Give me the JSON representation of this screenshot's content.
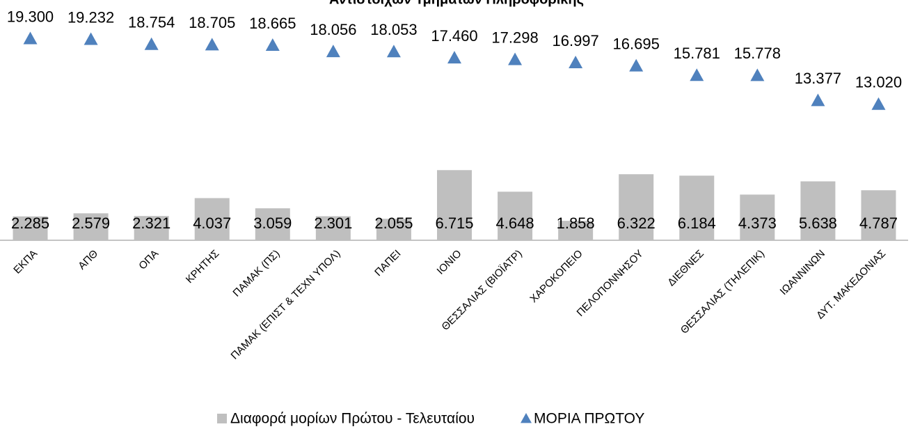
{
  "chart_data": {
    "type": "combo",
    "title": "Αντίστοιχων Τμημάτων Πληροφορικής",
    "categories": [
      "ΕΚΠΑ",
      "ΑΠΘ",
      "ΟΠΑ",
      "ΚΡΗΤΗΣ",
      "ΠΑΜΑΚ (ΠΣ)",
      "ΠΑΜΑΚ (ΕΠΙΣΤ & ΤΕΧΝ ΥΠΟΛ)",
      "ΠΑΠΕΙ",
      "ΙΟΝΙΟ",
      "ΘΕΣΣΑΛΙΑΣ (ΒΙΟΪΑΤΡ)",
      "ΧΑΡΟΚΟΠΕΙΟ",
      "ΠΕΛΟΠΟΝΝΗΣΟΥ",
      "ΔΙΕΘΝΕΣ",
      "ΘΕΣΣΑΛΙΑΣ (ΤΗΛΕΠΙΚ)",
      "ΙΩΑΝΝΙΝΩΝ",
      "ΔΥΤ. ΜΑΚΕΔΟΝΙΑΣ"
    ],
    "series": [
      {
        "name": "Διαφορά μορίων Πρώτου - Τελευταίου",
        "type": "bar",
        "color": "#bfbfbf",
        "values": [
          2285,
          2579,
          2321,
          4037,
          3059,
          2301,
          2055,
          6715,
          4648,
          1858,
          6322,
          6184,
          4373,
          5638,
          4787
        ],
        "value_labels": [
          "2.285",
          "2.579",
          "2.321",
          "4.037",
          "3.059",
          "2.301",
          "2.055",
          "6.715",
          "4.648",
          "1.858",
          "6.322",
          "6.184",
          "4.373",
          "5.638",
          "4.787"
        ]
      },
      {
        "name": "ΜΟΡΙΑ ΠΡΩΤΟΥ",
        "type": "triangle",
        "color": "#4f81bd",
        "values": [
          19300,
          19232,
          18754,
          18705,
          18665,
          18056,
          18053,
          17460,
          17298,
          16997,
          16695,
          15781,
          15778,
          13377,
          13020
        ],
        "value_labels": [
          "19.300",
          "19.232",
          "18.754",
          "18.705",
          "18.665",
          "18.056",
          "18.053",
          "17.460",
          "17.298",
          "16.997",
          "16.695",
          "15.781",
          "15.778",
          "13.377",
          "13.020"
        ]
      }
    ],
    "ylim": [
      0,
      20000
    ]
  }
}
